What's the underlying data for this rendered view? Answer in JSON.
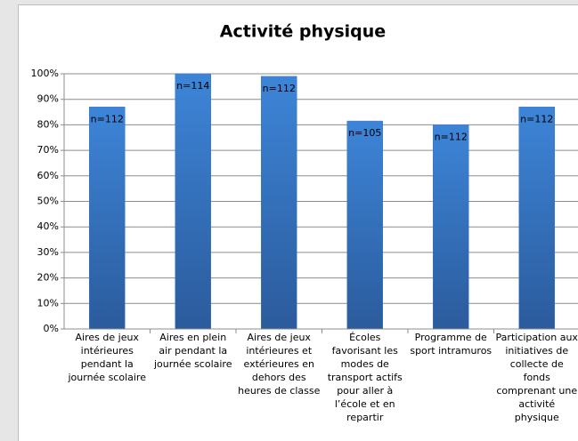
{
  "chart_data": {
    "type": "bar",
    "title": "Activité physique",
    "categories": [
      "Aires de jeux intérieures pendant la journée scolaire",
      "Aires en plein air pendant la journée scolaire",
      "Aires de jeux intérieures et extérieures en dehors des heures de classe",
      "Écoles favorisant les modes de transport actifs pour aller à l’école et en repartir",
      "Programme de sport intramuros",
      "Participation aux initiatives de collecte de fonds comprenant une activité physique"
    ],
    "values": [
      87,
      100,
      99,
      81.5,
      80,
      87
    ],
    "annotations": [
      "n=112",
      "n=114",
      "n=112",
      "n=105",
      "n=112",
      "n=112"
    ],
    "color": "#3a78c9",
    "ylim": [
      0,
      100
    ],
    "yticks": [
      {
        "value": 0,
        "label": "0%"
      },
      {
        "value": 10,
        "label": "10%"
      },
      {
        "value": 20,
        "label": "20%"
      },
      {
        "value": 30,
        "label": "30%"
      },
      {
        "value": 40,
        "label": "40%"
      },
      {
        "value": 50,
        "label": "50%"
      },
      {
        "value": 60,
        "label": "60%"
      },
      {
        "value": 70,
        "label": "70%"
      },
      {
        "value": 80,
        "label": "80%"
      },
      {
        "value": 90,
        "label": "90%"
      },
      {
        "value": 100,
        "label": "100%"
      }
    ],
    "grid": true
  }
}
